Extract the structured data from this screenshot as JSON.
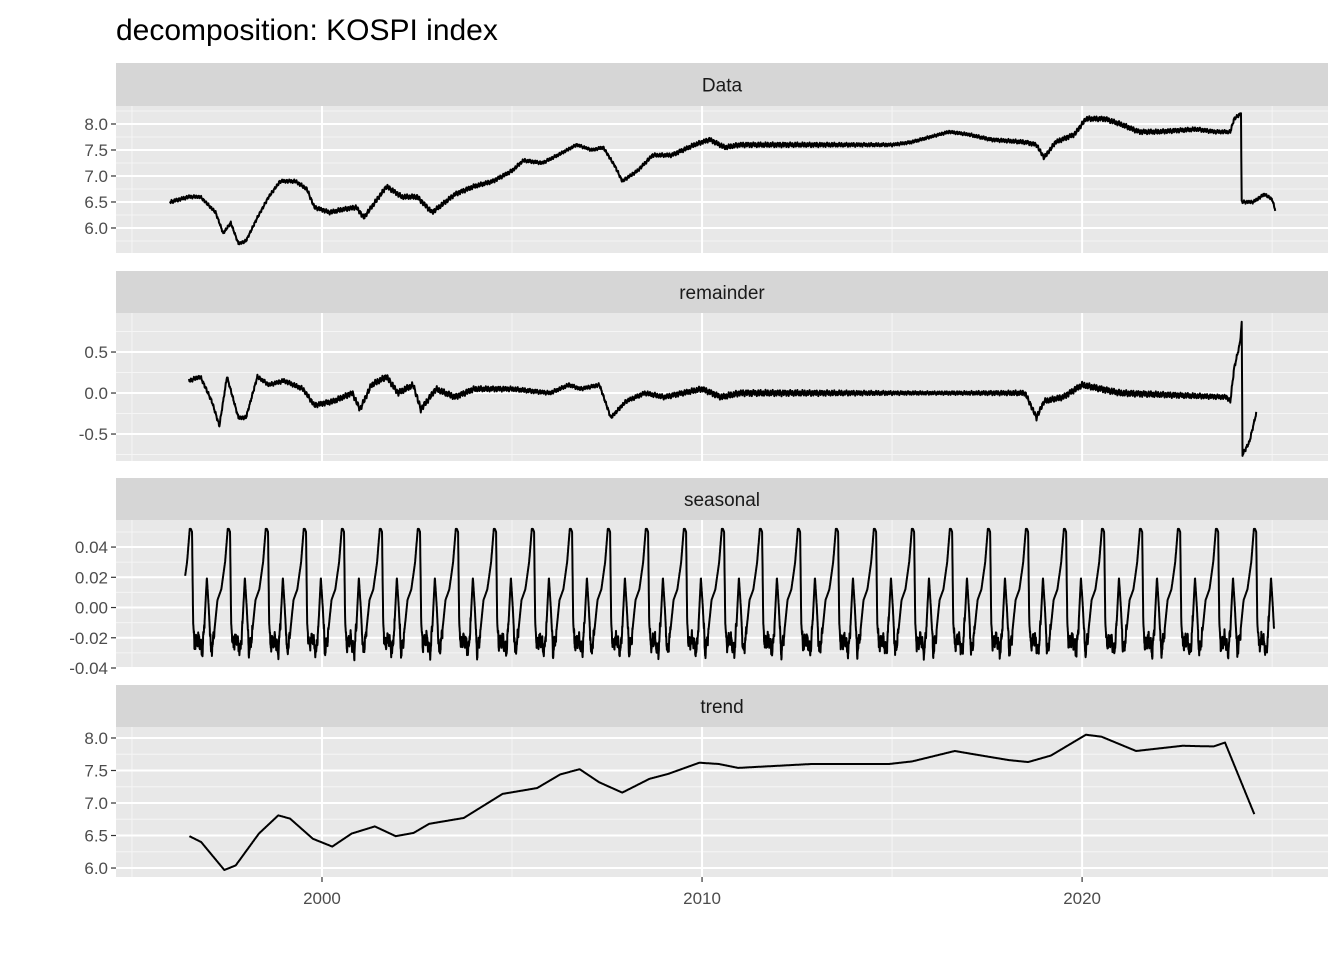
{
  "chart_data": {
    "type": "line",
    "title": "decomposition: KOSPI index",
    "xlabel": "",
    "ylabel": "",
    "xlim": [
      1994.58,
      2026.47
    ],
    "x_ticks": [
      2000,
      2010,
      2020
    ],
    "x_tick_labels": [
      "2000",
      "2010",
      "2020"
    ],
    "grid": true,
    "panels": [
      {
        "name": "Data",
        "ylim": [
          5.519,
          8.346
        ],
        "y_ticks": [
          6.0,
          6.5,
          7.0,
          7.5,
          8.0
        ],
        "y_tick_labels": [
          "6.0",
          "6.5",
          "7.0",
          "7.5",
          "8.0"
        ],
        "noise": 0.05,
        "points": [
          [
            1996.0,
            6.5
          ],
          [
            1996.5,
            6.6
          ],
          [
            1996.8,
            6.6
          ],
          [
            1997.2,
            6.3
          ],
          [
            1997.4,
            5.9
          ],
          [
            1997.6,
            6.1
          ],
          [
            1997.8,
            5.7
          ],
          [
            1998.0,
            5.75
          ],
          [
            1998.3,
            6.2
          ],
          [
            1998.6,
            6.6
          ],
          [
            1998.9,
            6.9
          ],
          [
            1999.3,
            6.9
          ],
          [
            1999.6,
            6.75
          ],
          [
            1999.8,
            6.4
          ],
          [
            2000.2,
            6.3
          ],
          [
            2000.5,
            6.35
          ],
          [
            2000.9,
            6.4
          ],
          [
            2001.1,
            6.2
          ],
          [
            2001.5,
            6.6
          ],
          [
            2001.7,
            6.8
          ],
          [
            2002.1,
            6.6
          ],
          [
            2002.5,
            6.6
          ],
          [
            2002.9,
            6.3
          ],
          [
            2003.5,
            6.65
          ],
          [
            2004.0,
            6.8
          ],
          [
            2004.5,
            6.9
          ],
          [
            2005.0,
            7.1
          ],
          [
            2005.3,
            7.3
          ],
          [
            2005.8,
            7.25
          ],
          [
            2006.2,
            7.4
          ],
          [
            2006.7,
            7.6
          ],
          [
            2007.1,
            7.5
          ],
          [
            2007.4,
            7.55
          ],
          [
            2007.7,
            7.2
          ],
          [
            2007.9,
            6.9
          ],
          [
            2008.3,
            7.1
          ],
          [
            2008.7,
            7.4
          ],
          [
            2009.2,
            7.4
          ],
          [
            2009.8,
            7.6
          ],
          [
            2010.2,
            7.7
          ],
          [
            2010.6,
            7.55
          ],
          [
            2011.0,
            7.6
          ],
          [
            2013.0,
            7.6
          ],
          [
            2015.0,
            7.6
          ],
          [
            2015.5,
            7.65
          ],
          [
            2016.5,
            7.85
          ],
          [
            2017.0,
            7.8
          ],
          [
            2017.6,
            7.7
          ],
          [
            2018.5,
            7.65
          ],
          [
            2018.8,
            7.6
          ],
          [
            2019.0,
            7.35
          ],
          [
            2019.3,
            7.65
          ],
          [
            2019.8,
            7.8
          ],
          [
            2020.1,
            8.1
          ],
          [
            2020.6,
            8.1
          ],
          [
            2021.0,
            8.0
          ],
          [
            2021.5,
            7.85
          ],
          [
            2022.0,
            7.85
          ],
          [
            2023.0,
            7.9
          ],
          [
            2023.5,
            7.85
          ],
          [
            2023.9,
            7.85
          ],
          [
            2024.0,
            8.1
          ],
          [
            2024.18,
            8.2
          ],
          [
            2024.2,
            6.5
          ],
          [
            2024.5,
            6.5
          ],
          [
            2024.8,
            6.65
          ],
          [
            2025.0,
            6.55
          ],
          [
            2025.08,
            6.35
          ]
        ]
      },
      {
        "name": "remainder",
        "ylim": [
          -0.829,
          0.976
        ],
        "y_ticks": [
          -0.5,
          0.0,
          0.5
        ],
        "y_tick_labels": [
          "-0.5",
          "0.0",
          "0.5"
        ],
        "noise": 0.04,
        "points": [
          [
            1996.5,
            0.15
          ],
          [
            1996.8,
            0.2
          ],
          [
            1997.1,
            -0.1
          ],
          [
            1997.3,
            -0.4
          ],
          [
            1997.5,
            0.2
          ],
          [
            1997.8,
            -0.3
          ],
          [
            1998.0,
            -0.3
          ],
          [
            1998.3,
            0.2
          ],
          [
            1998.6,
            0.1
          ],
          [
            1999.0,
            0.15
          ],
          [
            1999.5,
            0.05
          ],
          [
            1999.8,
            -0.15
          ],
          [
            2000.3,
            -0.1
          ],
          [
            2000.8,
            0.0
          ],
          [
            2001.0,
            -0.2
          ],
          [
            2001.3,
            0.1
          ],
          [
            2001.7,
            0.2
          ],
          [
            2002.0,
            0.0
          ],
          [
            2002.4,
            0.1
          ],
          [
            2002.6,
            -0.2
          ],
          [
            2003.0,
            0.05
          ],
          [
            2003.5,
            -0.05
          ],
          [
            2004.0,
            0.05
          ],
          [
            2005.0,
            0.05
          ],
          [
            2006.0,
            0.0
          ],
          [
            2006.5,
            0.1
          ],
          [
            2006.8,
            0.05
          ],
          [
            2007.3,
            0.1
          ],
          [
            2007.6,
            -0.3
          ],
          [
            2008.0,
            -0.1
          ],
          [
            2008.5,
            0.0
          ],
          [
            2009.0,
            -0.05
          ],
          [
            2010.0,
            0.05
          ],
          [
            2010.5,
            -0.05
          ],
          [
            2011.0,
            0.0
          ],
          [
            2018.5,
            0.0
          ],
          [
            2018.8,
            -0.3
          ],
          [
            2019.0,
            -0.1
          ],
          [
            2019.5,
            -0.05
          ],
          [
            2020.0,
            0.1
          ],
          [
            2020.5,
            0.05
          ],
          [
            2021.0,
            0.0
          ],
          [
            2023.8,
            -0.05
          ],
          [
            2023.9,
            -0.1
          ],
          [
            2024.0,
            0.3
          ],
          [
            2024.15,
            0.6
          ],
          [
            2024.2,
            0.85
          ],
          [
            2024.22,
            -0.75
          ],
          [
            2024.4,
            -0.6
          ],
          [
            2024.58,
            -0.25
          ]
        ]
      },
      {
        "name": "seasonal",
        "ylim": [
          -0.04,
          0.0579
        ],
        "y_ticks": [
          -0.04,
          -0.02,
          0.0,
          0.02,
          0.04
        ],
        "y_tick_labels": [
          "-0.04",
          "-0.02",
          "0.00",
          "0.02",
          "0.04"
        ],
        "period_start": 1996.55,
        "range": [
          1996.4,
          2025.05
        ],
        "pattern": [
          [
            0.0,
            0.052
          ],
          [
            0.03,
            0.05
          ],
          [
            0.06,
            -0.01
          ],
          [
            0.1,
            -0.025
          ],
          [
            0.2,
            -0.02
          ],
          [
            0.3,
            -0.03
          ],
          [
            0.36,
            -0.01
          ],
          [
            0.42,
            0.02
          ],
          [
            0.47,
            0.0
          ],
          [
            0.53,
            -0.03
          ],
          [
            0.6,
            -0.02
          ],
          [
            0.7,
            0.005
          ],
          [
            0.8,
            0.012
          ],
          [
            0.9,
            0.03
          ],
          [
            0.97,
            0.052
          ],
          [
            1.0,
            0.052
          ]
        ]
      },
      {
        "name": "trend",
        "ylim": [
          5.862,
          8.169
        ],
        "y_ticks": [
          6.0,
          6.5,
          7.0,
          7.5,
          8.0
        ],
        "y_tick_labels": [
          "6.0",
          "6.5",
          "7.0",
          "7.5",
          "8.0"
        ],
        "noise": 0,
        "points": [
          [
            1996.51,
            6.49
          ],
          [
            1996.82,
            6.4
          ],
          [
            1997.43,
            5.97
          ],
          [
            1997.73,
            6.04
          ],
          [
            1998.34,
            6.53
          ],
          [
            1998.85,
            6.81
          ],
          [
            1999.16,
            6.76
          ],
          [
            1999.76,
            6.45
          ],
          [
            2000.27,
            6.33
          ],
          [
            2000.78,
            6.53
          ],
          [
            2001.39,
            6.64
          ],
          [
            2001.94,
            6.49
          ],
          [
            2002.41,
            6.54
          ],
          [
            2002.82,
            6.68
          ],
          [
            2003.73,
            6.77
          ],
          [
            2004.75,
            7.14
          ],
          [
            2005.66,
            7.23
          ],
          [
            2006.27,
            7.44
          ],
          [
            2006.78,
            7.52
          ],
          [
            2007.29,
            7.32
          ],
          [
            2007.9,
            7.16
          ],
          [
            2008.61,
            7.37
          ],
          [
            2009.12,
            7.45
          ],
          [
            2009.93,
            7.62
          ],
          [
            2010.44,
            7.6
          ],
          [
            2010.95,
            7.54
          ],
          [
            2012.88,
            7.6
          ],
          [
            2014.92,
            7.6
          ],
          [
            2015.53,
            7.64
          ],
          [
            2016.65,
            7.8
          ],
          [
            2017.15,
            7.75
          ],
          [
            2018.07,
            7.66
          ],
          [
            2018.58,
            7.63
          ],
          [
            2019.18,
            7.73
          ],
          [
            2020.1,
            8.05
          ],
          [
            2020.51,
            8.02
          ],
          [
            2021.42,
            7.8
          ],
          [
            2022.64,
            7.88
          ],
          [
            2023.46,
            7.87
          ],
          [
            2023.76,
            7.93
          ],
          [
            2024.53,
            6.83
          ]
        ]
      }
    ]
  }
}
